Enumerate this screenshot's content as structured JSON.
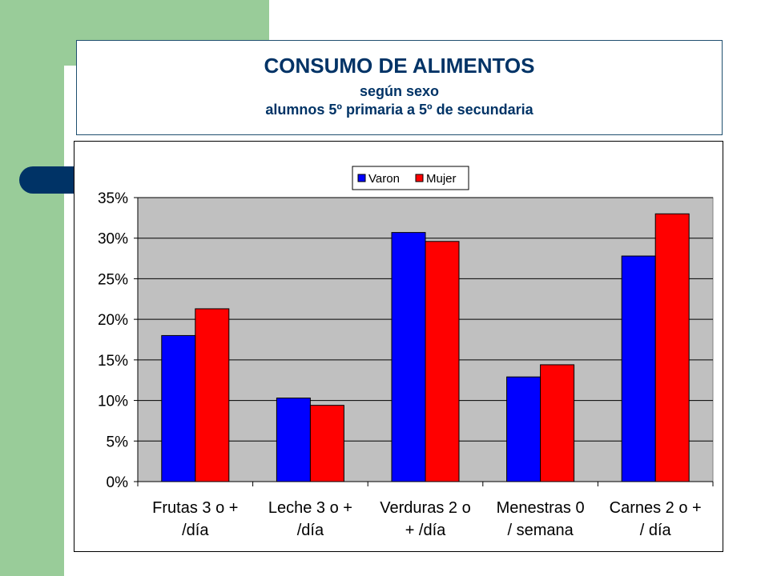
{
  "title": {
    "main": "CONSUMO DE ALIMENTOS",
    "sub1": "según sexo",
    "sub2": "alumnos 5º primaria a 5º de secundaria"
  },
  "colors": {
    "varon": "#0000ff",
    "mujer": "#ff0000",
    "plot_bg": "#c0c0c0",
    "title_text": "#003366"
  },
  "chart_data": {
    "type": "bar",
    "categories": [
      [
        "Frutas 3 o +",
        "/día"
      ],
      [
        "Leche 3 o +",
        "/día"
      ],
      [
        "Verduras 2 o",
        "+ /día"
      ],
      [
        "Menestras 0",
        "/ semana"
      ],
      [
        "Carnes 2 o +",
        "/ día"
      ]
    ],
    "series": [
      {
        "name": "Varon",
        "values": [
          18.0,
          10.3,
          30.7,
          12.9,
          27.8
        ]
      },
      {
        "name": "Mujer",
        "values": [
          21.3,
          9.4,
          29.6,
          14.4,
          33.0
        ]
      }
    ],
    "y_ticks": [
      "0%",
      "5%",
      "10%",
      "15%",
      "20%",
      "25%",
      "30%",
      "35%"
    ],
    "ylim": [
      0,
      35
    ],
    "grid": true,
    "legend": "top"
  }
}
